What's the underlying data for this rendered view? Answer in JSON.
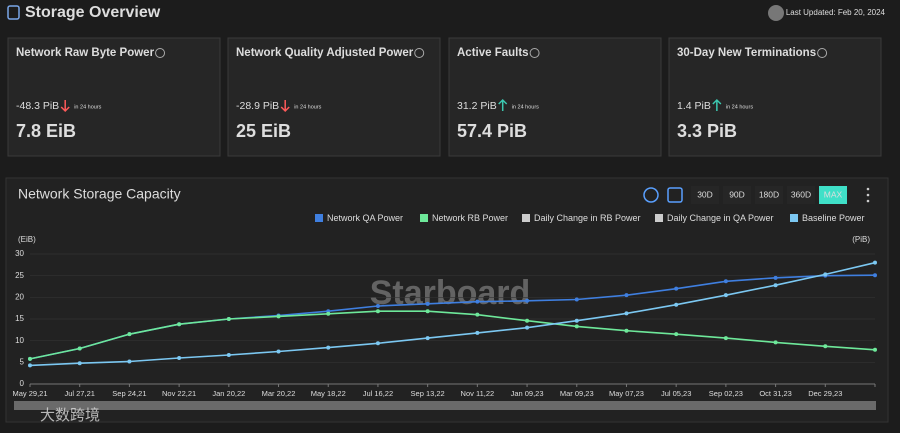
{
  "header": {
    "title": "Storage Overview",
    "last_updated": "Last Updated: Feb 20, 2024"
  },
  "cards": [
    {
      "title": "Network Raw Byte Power",
      "change": "-48.3 PiB",
      "direction": "down",
      "period": "in 24 hours",
      "value": "7.8 EiB"
    },
    {
      "title": "Network Quality Adjusted Power",
      "change": "-28.9 PiB",
      "direction": "down",
      "period": "in 24 hours",
      "value": "25 EiB"
    },
    {
      "title": "Active Faults",
      "change": "31.2 PiB",
      "direction": "up",
      "period": "in 24 hours",
      "value": "57.4 PiB"
    },
    {
      "title": "30-Day New Terminations",
      "change": "1.4 PiB",
      "direction": "up",
      "period": "in 24 hours",
      "value": "3.3 PiB"
    }
  ],
  "chart_data": {
    "type": "line",
    "title": "Network Storage Capacity",
    "range_buttons": [
      "30D",
      "90D",
      "180D",
      "360D",
      "MAX"
    ],
    "selected_range": "MAX",
    "y_label": "(EiB)",
    "y2_label": "(PiB)",
    "watermark": "Starboard",
    "categories": [
      "May 29,21",
      "Jul 27,21",
      "Sep 24,21",
      "Nov 22,21",
      "Jan 20,22",
      "Mar 20,22",
      "May 18,22",
      "Jul 16,22",
      "Sep 13,22",
      "Nov 11,22",
      "Jan 09,23",
      "Mar 09,23",
      "May 07,23",
      "Jul 05,23",
      "Sep 02,23",
      "Oct 31,23",
      "Dec 29,23",
      null
    ],
    "series": [
      {
        "name": "Network QA Power",
        "color": "#3f7fe0",
        "visible": true,
        "values": [
          5.8,
          8.2,
          11.5,
          13.8,
          15,
          15.8,
          16.8,
          18,
          18.5,
          19,
          19.2,
          19.5,
          20.5,
          22,
          23.7,
          24.5,
          25,
          25.1
        ]
      },
      {
        "name": "Network RB Power",
        "color": "#6ee89a",
        "visible": true,
        "values": [
          5.8,
          8.2,
          11.5,
          13.8,
          15,
          15.6,
          16.2,
          16.8,
          16.8,
          16,
          14.6,
          13.3,
          12.3,
          11.5,
          10.6,
          9.6,
          8.7,
          7.9
        ]
      },
      {
        "name": "Daily Change in RB Power",
        "color": "#cccccc",
        "visible": false,
        "values": [
          null,
          null,
          null,
          null,
          null,
          null,
          null,
          null,
          null,
          null,
          null,
          null,
          null,
          null,
          null,
          null,
          null,
          null
        ]
      },
      {
        "name": "Daily Change in QA Power",
        "color": "#cccccc",
        "visible": false,
        "values": [
          null,
          null,
          null,
          null,
          null,
          null,
          null,
          null,
          null,
          null,
          null,
          null,
          null,
          null,
          null,
          null,
          null,
          null
        ]
      },
      {
        "name": "Baseline Power",
        "color": "#7cc8f2",
        "visible": true,
        "values": [
          4.3,
          4.8,
          5.2,
          6,
          6.7,
          7.5,
          8.4,
          9.4,
          10.6,
          11.8,
          13,
          14.6,
          16.3,
          18.3,
          20.5,
          22.8,
          25.3,
          28
        ]
      }
    ],
    "ylim": [
      0,
      30
    ],
    "yticks": [
      0,
      5,
      10,
      15,
      20,
      25,
      30
    ],
    "grid": true
  },
  "corner_watermark": "大数跨境"
}
